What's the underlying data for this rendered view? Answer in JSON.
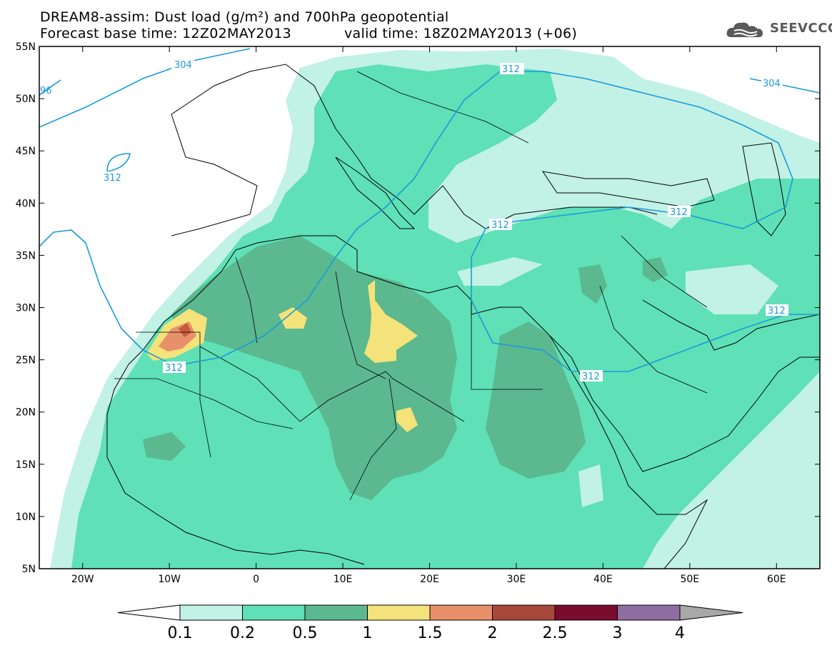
{
  "title": {
    "line1": "DREAM8-assim: Dust load (g/m²) and 700hPa geopotential",
    "line2a": "Forecast base time: 12Z02MAY2013",
    "line2b": "valid time: 18Z02MAY2013 (+06)"
  },
  "logo": {
    "text": "SEEVCCC",
    "icon": "cloud-icon"
  },
  "axes": {
    "lon_labels": [
      "20W",
      "10W",
      "0",
      "10E",
      "20E",
      "30E",
      "40E",
      "50E",
      "60E"
    ],
    "lat_labels": [
      "55N",
      "50N",
      "45N",
      "40N",
      "35N",
      "30N",
      "25N",
      "20N",
      "15N",
      "10N",
      "5N"
    ]
  },
  "contour_labels": {
    "c304": "304",
    "c96": "96",
    "c312a": "312",
    "c312b": "312",
    "c304b": "304",
    "c312c": "312",
    "c312d": "312",
    "c312e": "312",
    "c312f": "312",
    "c312g": "312"
  },
  "colorbar": {
    "labels": [
      "0.1",
      "0.2",
      "0.5",
      "1",
      "1.5",
      "2",
      "2.5",
      "3",
      "4"
    ],
    "colors": [
      "#c2f1e6",
      "#5fe0b6",
      "#5bb88f",
      "#f4e27a",
      "#e8906a",
      "#a8473c",
      "#7a0c2e",
      "#8e6ea0",
      "#a8a8a8"
    ]
  },
  "fill_colors": {
    "c01": "#c2f1e6",
    "c02": "#5fe0b6",
    "c05": "#5bb88f",
    "c10": "#f4e27a",
    "c15": "#e8906a",
    "c20": "#c85a3c",
    "contour": "#1a9bdb"
  }
}
